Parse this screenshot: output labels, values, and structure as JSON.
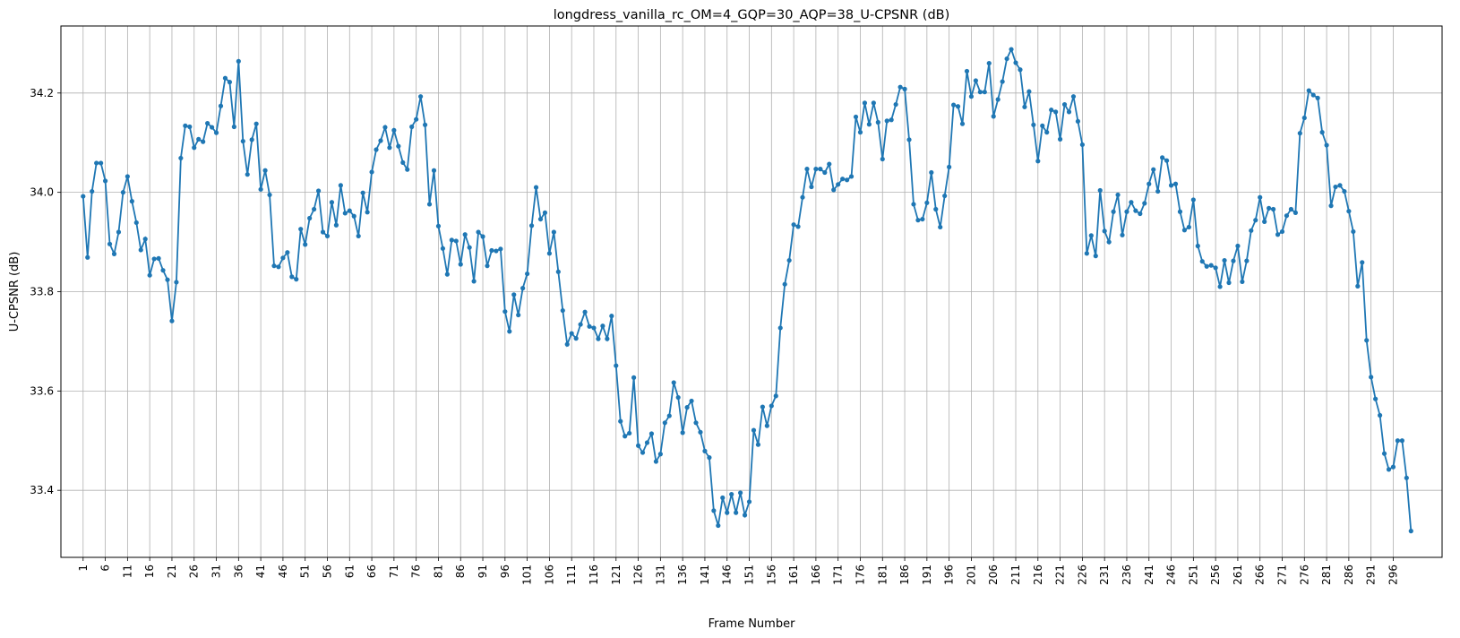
{
  "chart_data": {
    "type": "line",
    "title": "longdress_vanilla_rc_OM=4_GQP=30_AQP=38_U-CPSNR (dB)",
    "xlabel": "Frame Number",
    "ylabel": "U-CPSNR (dB)",
    "xlim": [
      -4.0,
      307.0
    ],
    "ylim": [
      33.265,
      34.335
    ],
    "x_ticks": [
      1,
      6,
      11,
      16,
      21,
      26,
      31,
      36,
      41,
      46,
      51,
      56,
      61,
      66,
      71,
      76,
      81,
      86,
      91,
      96,
      101,
      106,
      111,
      116,
      121,
      126,
      131,
      136,
      141,
      146,
      151,
      156,
      161,
      166,
      171,
      176,
      181,
      186,
      191,
      196,
      201,
      206,
      211,
      216,
      221,
      226,
      231,
      236,
      241,
      246,
      251,
      256,
      261,
      266,
      271,
      276,
      281,
      286,
      291,
      296
    ],
    "y_ticks": [
      33.4,
      33.6,
      33.8,
      34.0,
      34.2
    ],
    "y_tick_labels": [
      "33.4",
      "33.6",
      "33.8",
      "34.0",
      "34.2"
    ],
    "grid": true,
    "color": "#1f77b4",
    "series": [
      {
        "name": "U-CPSNR",
        "x_start": 1,
        "values": [
          33.992,
          33.869,
          34.002,
          34.059,
          34.059,
          34.023,
          33.896,
          33.876,
          33.92,
          34.0,
          34.032,
          33.982,
          33.939,
          33.884,
          33.906,
          33.833,
          33.866,
          33.867,
          33.843,
          33.824,
          33.741,
          33.819,
          34.069,
          34.134,
          34.132,
          34.09,
          34.107,
          34.102,
          34.139,
          34.131,
          34.12,
          34.174,
          34.23,
          34.222,
          34.132,
          34.264,
          34.103,
          34.036,
          34.106,
          34.138,
          34.006,
          34.044,
          33.995,
          33.852,
          33.85,
          33.868,
          33.879,
          33.83,
          33.825,
          33.926,
          33.895,
          33.948,
          33.966,
          34.003,
          33.92,
          33.912,
          33.98,
          33.934,
          34.014,
          33.958,
          33.963,
          33.952,
          33.912,
          33.999,
          33.96,
          34.041,
          34.086,
          34.104,
          34.131,
          34.09,
          34.125,
          34.093,
          34.06,
          34.046,
          34.132,
          34.147,
          34.193,
          34.136,
          33.976,
          34.044,
          33.932,
          33.887,
          33.835,
          33.904,
          33.902,
          33.855,
          33.915,
          33.889,
          33.821,
          33.92,
          33.911,
          33.852,
          33.883,
          33.882,
          33.886,
          33.76,
          33.72,
          33.794,
          33.753,
          33.807,
          33.836,
          33.933,
          34.01,
          33.946,
          33.959,
          33.877,
          33.92,
          33.84,
          33.762,
          33.694,
          33.716,
          33.706,
          33.734,
          33.759,
          33.73,
          33.727,
          33.705,
          33.731,
          33.705,
          33.751,
          33.651,
          33.539,
          33.509,
          33.515,
          33.627,
          33.49,
          33.476,
          33.496,
          33.514,
          33.458,
          33.473,
          33.536,
          33.55,
          33.617,
          33.587,
          33.516,
          33.567,
          33.58,
          33.536,
          33.517,
          33.479,
          33.466,
          33.359,
          33.329,
          33.385,
          33.355,
          33.392,
          33.355,
          33.395,
          33.35,
          33.377,
          33.521,
          33.492,
          33.568,
          33.53,
          33.57,
          33.59,
          33.727,
          33.815,
          33.863,
          33.935,
          33.931,
          33.99,
          34.047,
          34.011,
          34.047,
          34.047,
          34.04,
          34.057,
          34.005,
          34.016,
          34.027,
          34.025,
          34.032,
          34.152,
          34.121,
          34.18,
          34.137,
          34.18,
          34.141,
          34.067,
          34.144,
          34.146,
          34.177,
          34.212,
          34.208,
          34.106,
          33.976,
          33.944,
          33.946,
          33.979,
          34.04,
          33.966,
          33.93,
          33.993,
          34.051,
          34.176,
          34.173,
          34.138,
          34.244,
          34.193,
          34.225,
          34.202,
          34.202,
          34.26,
          34.153,
          34.187,
          34.223,
          34.269,
          34.288,
          34.261,
          34.247,
          34.172,
          34.203,
          34.136,
          34.063,
          34.134,
          34.121,
          34.166,
          34.162,
          34.107,
          34.177,
          34.162,
          34.193,
          34.143,
          34.096,
          33.877,
          33.913,
          33.872,
          34.004,
          33.922,
          33.9,
          33.961,
          33.995,
          33.914,
          33.961,
          33.98,
          33.963,
          33.957,
          33.978,
          34.017,
          34.046,
          34.002,
          34.07,
          34.064,
          34.014,
          34.017,
          33.961,
          33.924,
          33.93,
          33.985,
          33.892,
          33.861,
          33.851,
          33.853,
          33.848,
          33.81,
          33.863,
          33.818,
          33.862,
          33.892,
          33.82,
          33.862,
          33.923,
          33.944,
          33.99,
          33.941,
          33.968,
          33.966,
          33.915,
          33.921,
          33.953,
          33.966,
          33.959,
          34.119,
          34.15,
          34.205,
          34.196,
          34.19,
          34.121,
          34.095,
          33.973,
          34.011,
          34.014,
          34.002,
          33.962,
          33.921,
          33.811,
          33.859,
          33.702,
          33.628,
          33.584,
          33.551,
          33.474,
          33.442,
          33.447,
          33.5,
          33.5,
          33.425,
          33.318
        ]
      }
    ]
  }
}
